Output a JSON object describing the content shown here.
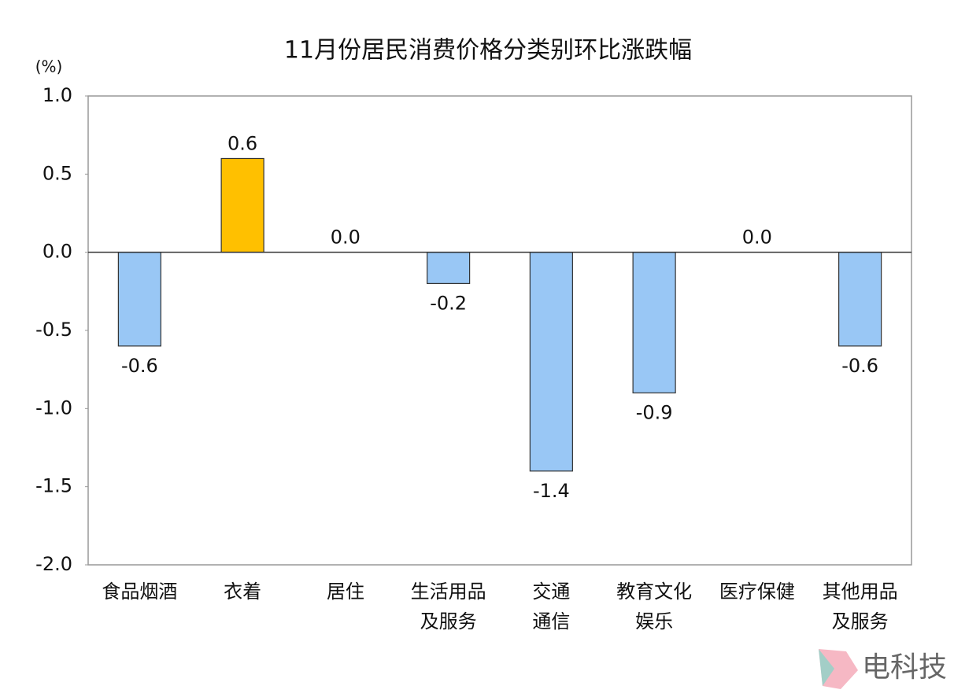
{
  "chart_data": {
    "type": "bar",
    "title": "11月份居民消费价格分类别环比涨跌幅",
    "y_axis_label": "(%)",
    "categories": [
      "食品烟酒",
      "衣着",
      "居住",
      "生活用品\n及服务",
      "交通\n通信",
      "教育文化\n娱乐",
      "医疗保健",
      "其他用品\n及服务"
    ],
    "values": [
      -0.6,
      0.6,
      0,
      -0.2,
      -1.4,
      -0.9,
      0,
      -0.6
    ],
    "value_labels": [
      "-0.6",
      "0.6",
      "0.0",
      "-0.2",
      "-1.4",
      "-0.9",
      "0.0",
      "-0.6"
    ],
    "colors": [
      "#99c7f5",
      "#ffc000",
      "#99c7f5",
      "#99c7f5",
      "#99c7f5",
      "#99c7f5",
      "#99c7f5",
      "#99c7f5"
    ],
    "ylim": [
      -2.0,
      1.0
    ],
    "yticks": [
      {
        "value": -2,
        "label": "-2.0"
      },
      {
        "value": -1.5,
        "label": "-1.5"
      },
      {
        "value": -1,
        "label": "-1.0"
      },
      {
        "value": -0.5,
        "label": "-0.5"
      },
      {
        "value": 0,
        "label": "0.0"
      },
      {
        "value": 0.5,
        "label": "0.5"
      },
      {
        "value": 1,
        "label": "1.0"
      }
    ],
    "watermark": "电科技"
  }
}
